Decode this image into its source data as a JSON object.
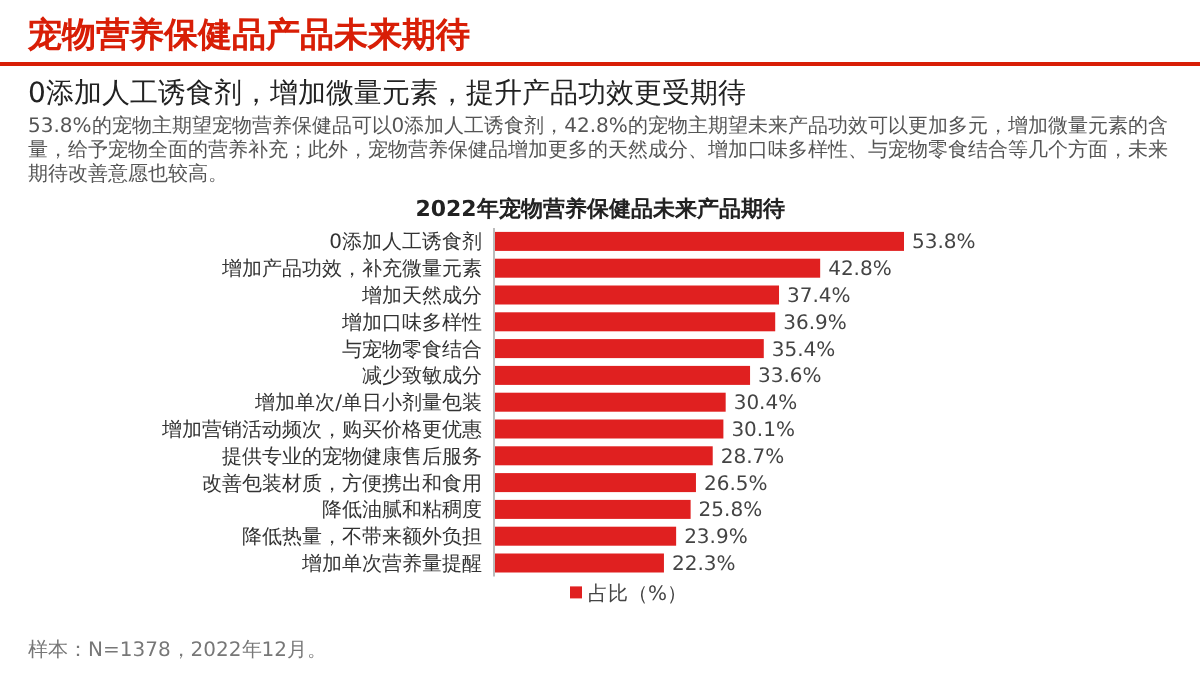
{
  "chart_data": {
    "type": "bar",
    "orientation": "horizontal",
    "title": "宠物营养保健品产品未来期待",
    "subtitle": "0添加人工诱食剂，增加微量元素，提升产品功效更受期待",
    "annotations": [
      "53.8%的宠物主期望宠物营养保健品可以0添加人工诱食剂，42.8%的宠物主期望未来产品功效可以更加多元，增加微量元素的含量，给予宠物全面的营养补充；此外，宠物营养保健品增加更多的天然成分、增加口味多样性、与宠物零食结合等几个方面，未来期待改善意愿也较高。",
      "2022年宠物营养保健品未来产品期待",
      "样本：N=1378，2022年12月。"
    ],
    "categories": [
      "0添加人工诱食剂",
      "增加产品功效，补充微量元素",
      "增加天然成分",
      "增加口味多样性",
      "与宠物零食结合",
      "减少致敏成分",
      "增加单次/单日小剂量包装",
      "增加营销活动频次，购买价格更优惠",
      "提供专业的宠物健康售后服务",
      "改善包装材质，方便携出和食用",
      "降低油腻和粘稠度",
      "降低热量，不带来额外负担",
      "增加单次营养量提醒"
    ],
    "series": [
      {
        "name": "占比（%）",
        "color": "#e02020",
        "values": [
          53.8,
          42.8,
          37.4,
          36.9,
          35.4,
          33.6,
          30.4,
          30.1,
          28.7,
          26.5,
          25.8,
          23.9,
          22.3
        ],
        "value_labels": [
          "53.8%",
          "42.8%",
          "37.4%",
          "36.9%",
          "35.4%",
          "33.6%",
          "30.4%",
          "30.1%",
          "28.7%",
          "26.5%",
          "25.8%",
          "23.9%",
          "22.3%"
        ]
      }
    ],
    "legend": "bottom"
  }
}
